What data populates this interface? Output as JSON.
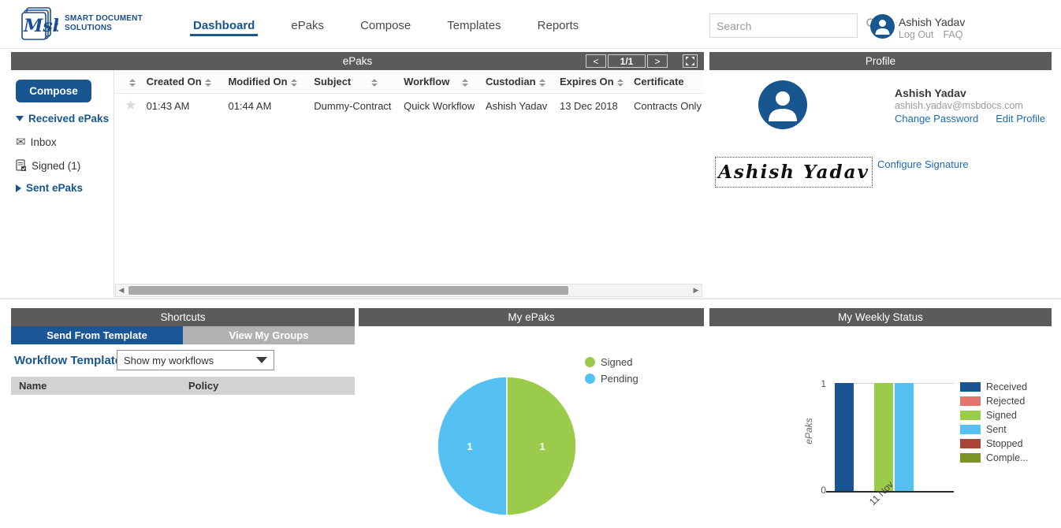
{
  "topbar": {
    "brand": {
      "script": "Msb",
      "name_line1": "SMART DOCUMENT",
      "name_line2": "SOLUTIONS"
    },
    "nav": [
      {
        "label": "Dashboard"
      },
      {
        "label": "ePaks"
      },
      {
        "label": "Compose"
      },
      {
        "label": "Templates"
      },
      {
        "label": "Reports"
      }
    ],
    "search": {
      "placeholder": "Search"
    },
    "user": {
      "name": "Ashish Yadav",
      "logout_label": "Log Out",
      "faq_label": "FAQ"
    }
  },
  "epaks": {
    "title": "ePaks",
    "pagination": {
      "prev": "<",
      "page": "1/1",
      "next": ">"
    },
    "sidebar": {
      "compose_label": "Compose",
      "received_label": "Received ePaks",
      "inbox_label": "Inbox",
      "signed_label": "Signed (1)",
      "sent_label": "Sent ePaks"
    },
    "table": {
      "columns": [
        "Created On",
        "Modified On",
        "Subject",
        "Workflow",
        "Custodian",
        "Expires On",
        "Certificate"
      ],
      "rows": [
        {
          "created": "01:43 AM",
          "modified": "01:44 AM",
          "subject": "Dummy-Contract",
          "workflow": "Quick Workflow",
          "custodian": "Ashish Yadav",
          "expires": "13 Dec 2018",
          "certificate": "Contracts Only"
        }
      ]
    }
  },
  "profile": {
    "title": "Profile",
    "name": "Ashish Yadav",
    "email": "ashish.yadav@msbdocs.com",
    "change_password_label": "Change Password",
    "edit_profile_label": "Edit Profile",
    "signature_text": "Ashish Yadav",
    "configure_signature_label": "Configure Signature"
  },
  "shortcuts": {
    "title": "Shortcuts",
    "tabs": [
      {
        "label": "Send From Template"
      },
      {
        "label": "View My Groups"
      }
    ],
    "workflow_templates_label": "Workflow Templates",
    "dropdown_value": "Show my workflows",
    "columns": {
      "name": "Name",
      "policy": "Policy"
    }
  },
  "my_epaks": {
    "title": "My ePaks",
    "legend": [
      {
        "label": "Signed",
        "color": "#9bcb4a"
      },
      {
        "label": "Pending",
        "color": "#55c1f2"
      }
    ],
    "slice_labels": {
      "signed": "1",
      "pending": "1"
    }
  },
  "weekly": {
    "title": "My Weekly Status",
    "y_label": "ePaks",
    "y_tick_top": "1",
    "y_tick_bottom": "0",
    "x_tick": "11 Nov",
    "legend": [
      {
        "label": "Received",
        "color": "#1a5493"
      },
      {
        "label": "Rejected",
        "color": "#e4766f"
      },
      {
        "label": "Signed",
        "color": "#9bcb4a"
      },
      {
        "label": "Sent",
        "color": "#55c1f2"
      },
      {
        "label": "Stopped",
        "color": "#ab4437"
      },
      {
        "label": "Comple...",
        "color": "#7a9426"
      }
    ]
  },
  "chart_data": [
    {
      "type": "pie",
      "title": "My ePaks",
      "labels": [
        "Signed",
        "Pending"
      ],
      "values": [
        1,
        1
      ],
      "colors": [
        "#9bcb4a",
        "#55c1f2"
      ],
      "data_labels": [
        "1",
        "1"
      ],
      "legend_position": "top-right"
    },
    {
      "type": "bar",
      "title": "My Weekly Status",
      "categories": [
        "11 Nov"
      ],
      "series": [
        {
          "name": "Received",
          "values": [
            1
          ],
          "color": "#1a5493"
        },
        {
          "name": "Rejected",
          "values": [
            0
          ],
          "color": "#e4766f"
        },
        {
          "name": "Signed",
          "values": [
            1
          ],
          "color": "#9bcb4a"
        },
        {
          "name": "Sent",
          "values": [
            1
          ],
          "color": "#55c1f2"
        },
        {
          "name": "Stopped",
          "values": [
            0
          ],
          "color": "#ab4437"
        },
        {
          "name": "Complete",
          "values": [
            0
          ],
          "color": "#7a9426"
        }
      ],
      "xlabel": "",
      "ylabel": "ePaks",
      "ylim": [
        0,
        1
      ],
      "grid": true,
      "legend_position": "right"
    }
  ]
}
